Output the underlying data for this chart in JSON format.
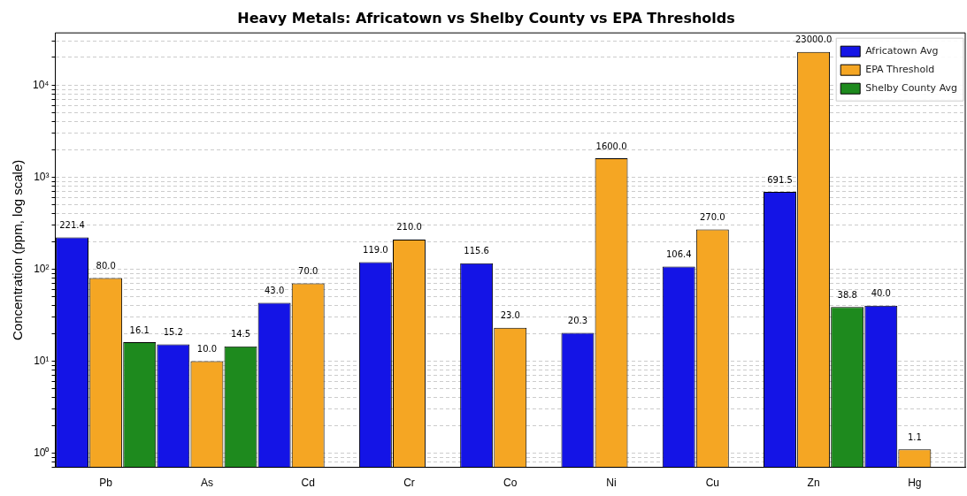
{
  "chart_data": {
    "type": "bar",
    "title": "Heavy Metals: Africatown vs Shelby County vs EPA Thresholds",
    "ylabel": "Concentration (ppm, log scale)",
    "categories": [
      "Pb",
      "As",
      "Cd",
      "Cr",
      "Co",
      "Ni",
      "Cu",
      "Zn",
      "Hg"
    ],
    "series": [
      {
        "name": "Africatown Avg",
        "color": "#1414e6",
        "values": [
          221.4,
          15.2,
          43.0,
          119.0,
          115.6,
          20.3,
          106.4,
          691.5,
          40.0
        ],
        "value_labels": [
          "221.4",
          "15.2",
          "43.0",
          "119.0",
          "115.6",
          "20.3",
          "106.4",
          "691.5",
          "40.0"
        ]
      },
      {
        "name": "EPA Threshold",
        "color": "#f5a623",
        "values": [
          80.0,
          10.0,
          70.0,
          210.0,
          23.0,
          1600.0,
          270.0,
          23000.0,
          1.1
        ],
        "value_labels": [
          "80.0",
          "10.0",
          "70.0",
          "210.0",
          "23.0",
          "1600.0",
          "270.0",
          "23000.0",
          "1.1"
        ]
      },
      {
        "name": "Shelby County Avg",
        "color": "#1e8a1e",
        "values": [
          16.1,
          14.5,
          null,
          null,
          null,
          null,
          null,
          38.8,
          null
        ],
        "value_labels": [
          "16.1",
          "14.5",
          null,
          null,
          null,
          null,
          null,
          "38.8",
          null
        ]
      }
    ],
    "log": "y",
    "ylim": [
      0.7,
      37000
    ],
    "yticks": [
      {
        "value": 0.7,
        "label": null
      },
      {
        "value": 0.8,
        "label": null
      },
      {
        "value": 0.9,
        "label": null
      },
      {
        "value": 1,
        "label": "10⁰"
      },
      {
        "value": 2,
        "label": null
      },
      {
        "value": 3,
        "label": null
      },
      {
        "value": 4,
        "label": null
      },
      {
        "value": 5,
        "label": null
      },
      {
        "value": 6,
        "label": null
      },
      {
        "value": 7,
        "label": null
      },
      {
        "value": 8,
        "label": null
      },
      {
        "value": 9,
        "label": null
      },
      {
        "value": 10,
        "label": "10¹"
      },
      {
        "value": 20,
        "label": null
      },
      {
        "value": 30,
        "label": null
      },
      {
        "value": 40,
        "label": null
      },
      {
        "value": 50,
        "label": null
      },
      {
        "value": 60,
        "label": null
      },
      {
        "value": 70,
        "label": null
      },
      {
        "value": 80,
        "label": null
      },
      {
        "value": 90,
        "label": null
      },
      {
        "value": 100,
        "label": "10²"
      },
      {
        "value": 200,
        "label": null
      },
      {
        "value": 300,
        "label": null
      },
      {
        "value": 400,
        "label": null
      },
      {
        "value": 500,
        "label": null
      },
      {
        "value": 600,
        "label": null
      },
      {
        "value": 700,
        "label": null
      },
      {
        "value": 800,
        "label": null
      },
      {
        "value": 900,
        "label": null
      },
      {
        "value": 1000,
        "label": "10³"
      },
      {
        "value": 2000,
        "label": null
      },
      {
        "value": 3000,
        "label": null
      },
      {
        "value": 4000,
        "label": null
      },
      {
        "value": 5000,
        "label": null
      },
      {
        "value": 6000,
        "label": null
      },
      {
        "value": 7000,
        "label": null
      },
      {
        "value": 8000,
        "label": null
      },
      {
        "value": 9000,
        "label": null
      },
      {
        "value": 10000,
        "label": "10⁴"
      },
      {
        "value": 20000,
        "label": null
      },
      {
        "value": 30000,
        "label": null
      }
    ],
    "grid": "y",
    "legend": "top right",
    "data_labels": false
  }
}
